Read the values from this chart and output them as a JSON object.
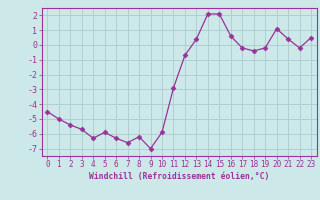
{
  "x": [
    0,
    1,
    2,
    3,
    4,
    5,
    6,
    7,
    8,
    9,
    10,
    11,
    12,
    13,
    14,
    15,
    16,
    17,
    18,
    19,
    20,
    21,
    22,
    23
  ],
  "y": [
    -4.5,
    -5.0,
    -5.4,
    -5.7,
    -6.3,
    -5.9,
    -6.3,
    -6.6,
    -6.2,
    -7.0,
    -5.9,
    -2.9,
    -0.7,
    0.4,
    2.1,
    2.1,
    0.6,
    -0.2,
    -0.4,
    -0.2,
    1.1,
    0.4,
    -0.2,
    0.5
  ],
  "line_color": "#993399",
  "marker": "D",
  "marker_size": 2.5,
  "bg_color": "#cce8e8",
  "grid_color": "#aacccc",
  "xlabel": "Windchill (Refroidissement éolien,°C)",
  "xlim": [
    -0.5,
    23.5
  ],
  "ylim": [
    -7.5,
    2.5
  ],
  "yticks": [
    -7,
    -6,
    -5,
    -4,
    -3,
    -2,
    -1,
    0,
    1,
    2
  ],
  "xticks": [
    0,
    1,
    2,
    3,
    4,
    5,
    6,
    7,
    8,
    9,
    10,
    11,
    12,
    13,
    14,
    15,
    16,
    17,
    18,
    19,
    20,
    21,
    22,
    23
  ],
  "label_color": "#993399",
  "xlabel_fontsize": 5.8,
  "tick_fontsize": 5.5,
  "ytick_fontsize": 6.0
}
